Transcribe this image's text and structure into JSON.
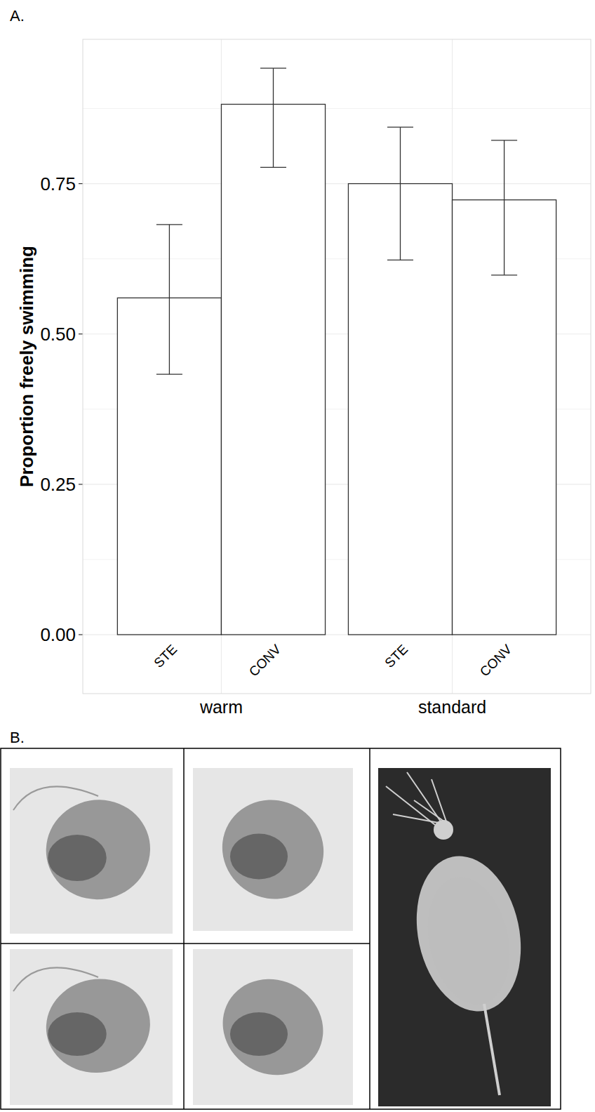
{
  "panel_labels": [
    "A.",
    "B."
  ],
  "chart_data": {
    "type": "bar",
    "y_label": "Proportion freely swimming",
    "categories": [
      "warm",
      "standard"
    ],
    "series": [
      {
        "name": "STE",
        "color": "#ffffff",
        "values": [
          0.56,
          0.75
        ],
        "lower": [
          0.433,
          0.623
        ],
        "upper": [
          0.682,
          0.844
        ]
      },
      {
        "name": "CONV",
        "color": "#ffffff",
        "values": [
          0.882,
          0.723
        ],
        "lower": [
          0.777,
          0.598
        ],
        "upper": [
          0.942,
          0.822
        ]
      }
    ],
    "ylim": [
      -0.098,
      0.99
    ],
    "yticks": [
      {
        "value": 0,
        "label": "0.00"
      },
      {
        "value": 0.25,
        "label": "0.25"
      },
      {
        "value": 0.5,
        "label": "0.50"
      },
      {
        "value": 0.75,
        "label": "0.75"
      }
    ],
    "grid": true
  }
}
